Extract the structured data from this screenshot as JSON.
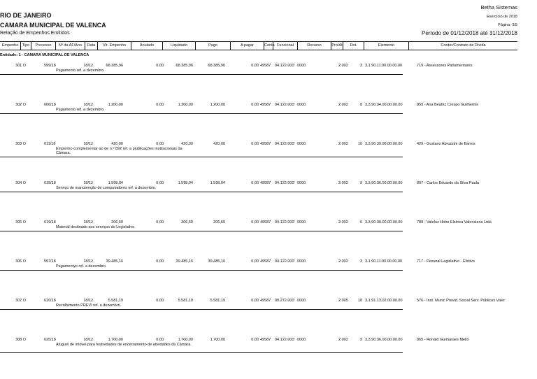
{
  "header": {
    "state": "RIO DE JANEIRO",
    "entity": "CAMARA MUNICIPAL DE VALENCA",
    "report": "Relação de Empenhos Emitidos",
    "vendor": "Betha Sistemas",
    "exercise": "Exercício de 2018",
    "page": "Página: 3/5",
    "period": "Período de 01/12/2018 até 31/12/2018"
  },
  "columns": [
    "Empenho",
    "Tipo",
    "Processo",
    "Nº da AF/Ano",
    "Data",
    "Vlr. Empenho",
    "Anulado",
    "Liquidado",
    "Pago",
    "A pagar",
    "Conta",
    "Funcional",
    "Recurso",
    "Pro/At",
    "Dot.",
    "Elemento",
    "Credor/Contrato de Dívida"
  ],
  "entity_line": "Entidade: 1 - CAMARA MUNICIPAL DE VALENCA",
  "rows": [
    {
      "empenho": "301 O",
      "processo": "599/18",
      "data": "18/12",
      "vlr": "68.385,96",
      "anulado": "0,00",
      "liquidado": "68.385,96",
      "pago": "68.385,96",
      "apagar": "0,00",
      "conta": "49587",
      "funcional": "04.122.000'",
      "recurso": "0000",
      "proat": "2.002",
      "dot": "3",
      "elemento": "3.1.90.11.00.00.00.00",
      "credor": "719 - Assessores Parlamentares",
      "desc": "Pagamento ref. a dezembro."
    },
    {
      "empenho": "302 O",
      "processo": "600/18",
      "data": "18/12",
      "vlr": "1.200,00",
      "anulado": "0,00",
      "liquidado": "1.200,00",
      "pago": "1.200,00",
      "apagar": "0,00",
      "conta": "49587",
      "funcional": "04.122.000'",
      "recurso": "0000",
      "proat": "2.002",
      "dot": "8",
      "elemento": "3.3.90.34.00.00.00.00",
      "credor": "859 - Ana Beatriz Crespo Guilherme",
      "desc": "Pagamento ref. a dezembro."
    },
    {
      "empenho": "303 O",
      "processo": "611/18",
      "data": "18/12",
      "vlr": "420,00",
      "anulado": "0,00",
      "liquidado": "420,00",
      "pago": "420,00",
      "apagar": "0,00",
      "conta": "49587",
      "funcional": "04.122.000'",
      "recurso": "0000",
      "proat": "2.002",
      "dot": "10",
      "elemento": "3.3.90.39.00.00.00.00",
      "credor": "429 - Gustavo Abruzzini de Barros",
      "desc": "Empenho complementar ao de n.º 092 ref. a piublicações institucionais da Câmara."
    },
    {
      "empenho": "304 O",
      "processo": "618/18",
      "data": "18/12",
      "vlr": "1.598,04",
      "anulado": "0,00",
      "liquidado": "1.598,04",
      "pago": "1.598,04",
      "apagar": "0,00",
      "conta": "49587",
      "funcional": "04.122.000'",
      "recurso": "0000",
      "proat": "2.002",
      "dot": "9",
      "elemento": "3.3.90.36.00.00.00.00",
      "credor": "807 - Carlos Eduardo da Silva Paula",
      "desc": "Serviço de manutenção de computadores ref. a dezembro."
    },
    {
      "empenho": "305 O",
      "processo": "619/18",
      "data": "18/12",
      "vlr": "206,60",
      "anulado": "0,00",
      "liquidado": "206,60",
      "pago": "206,60",
      "apagar": "0,00",
      "conta": "49587",
      "funcional": "04.122.000'",
      "recurso": "0000",
      "proat": "2.002",
      "dot": "6",
      "elemento": "3.3.90.30.00.00.00.00",
      "credor": "789 - Valeluz Hidro Eletrica Valenciana Ltda",
      "desc": "Material destinado aos serviços do Legislativo."
    },
    {
      "empenho": "306 O",
      "processo": "597/18",
      "data": "18/12",
      "vlr": "39.485,16",
      "anulado": "0,00",
      "liquidado": "39.485,16",
      "pago": "39.485,16",
      "apagar": "0,00",
      "conta": "49587",
      "funcional": "04.122.000'",
      "recurso": "0000",
      "proat": "2.002",
      "dot": "3",
      "elemento": "3.1.90.11.00.00.00.00",
      "credor": "717 - Pessoal Legislativo - Efetivo",
      "desc": "Pagamentyo ref. a dezembro."
    },
    {
      "empenho": "307 O",
      "processo": "610/18",
      "data": "18/12",
      "vlr": "5.581,19",
      "anulado": "0,00",
      "liquidado": "5.581,19",
      "pago": "5.581,19",
      "apagar": "0,00",
      "conta": "49587",
      "funcional": "09.272.000'",
      "recurso": "0000",
      "proat": "2.005",
      "dot": "18",
      "elemento": "3.1.91.13.02.00.00.00",
      "credor": "576 - Inst. Munic Previd. Social Serv. Públicos Valer",
      "desc": "Recolhimento PREVI ref. a dezembro."
    },
    {
      "empenho": "308 O",
      "processo": "625/18",
      "data": "18/12",
      "vlr": "1.700,00",
      "anulado": "0,00",
      "liquidado": "1.700,00",
      "pago": "1.700,00",
      "apagar": "0,00",
      "conta": "49587",
      "funcional": "04.122.000'",
      "recurso": "0000",
      "proat": "2.002",
      "dot": "9",
      "elemento": "3.3.90.36.00.00.00.00",
      "credor": "865 - Ronald Guimaraes Mello",
      "desc": "Aluguel de imóvel para festividades de encerramento de atividades da Câmara."
    }
  ]
}
